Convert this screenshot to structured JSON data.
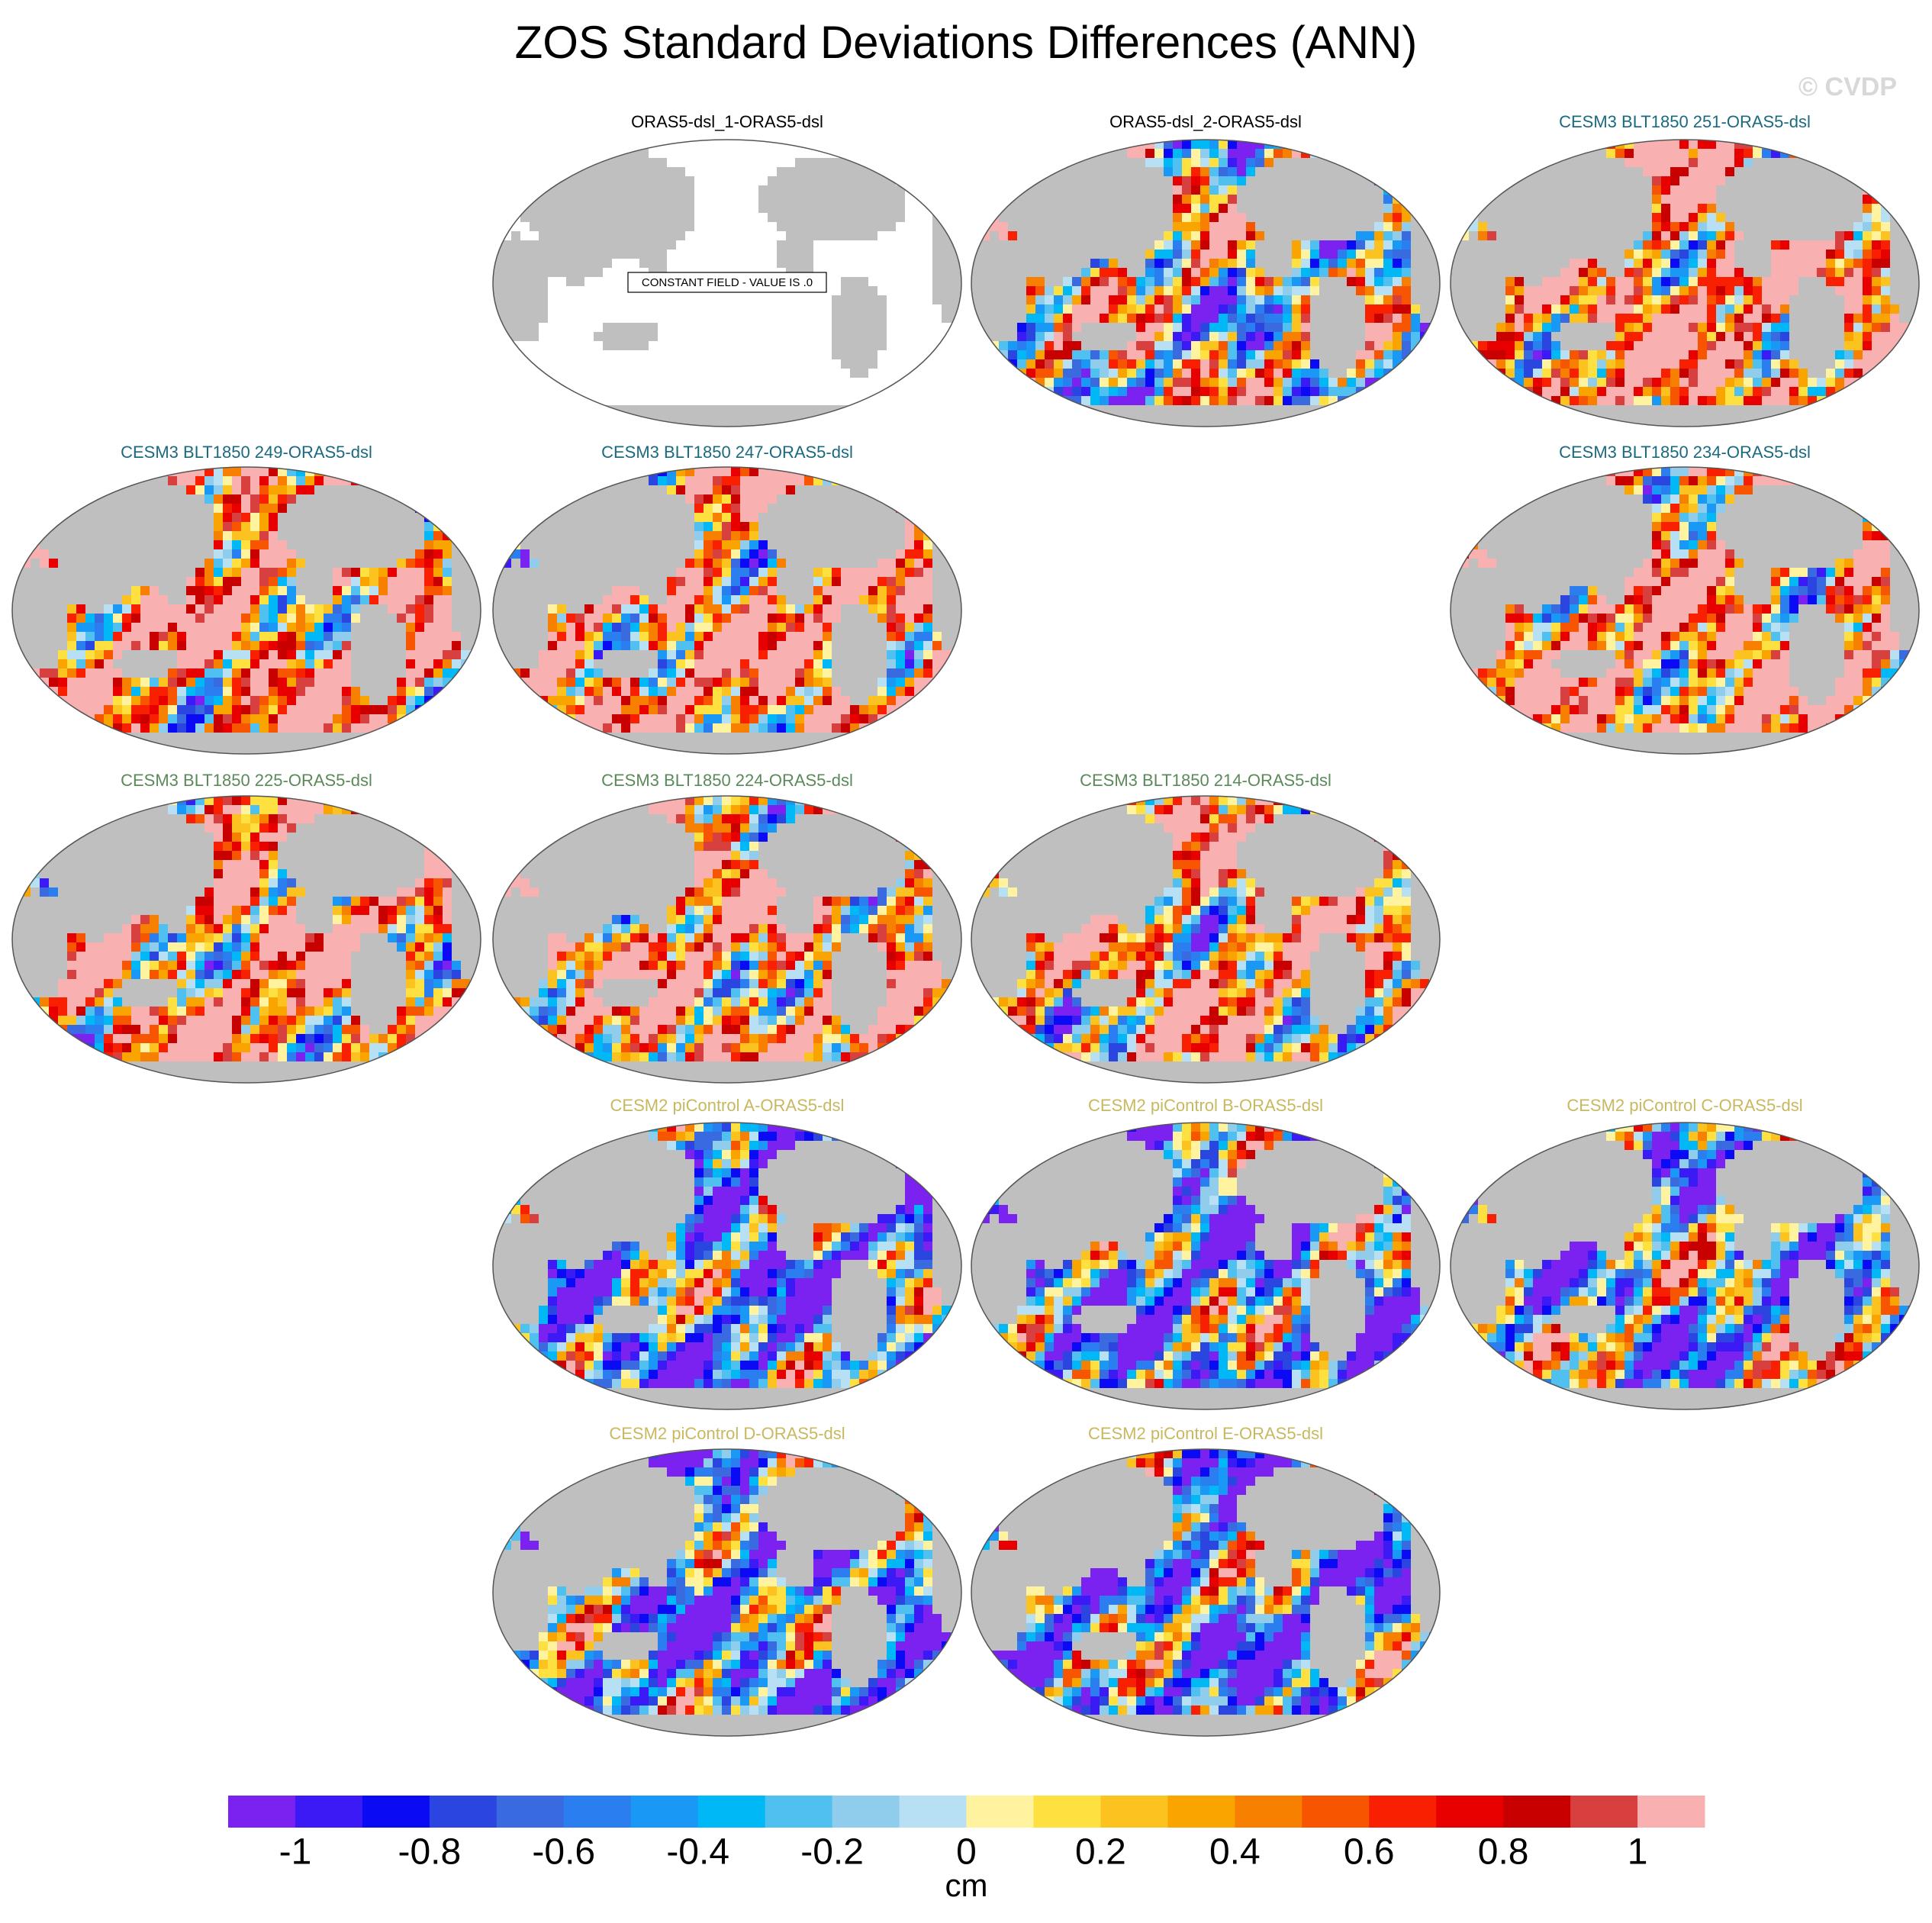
{
  "title": "ZOS Standard Deviations Differences (ANN)",
  "watermark": "© CVDP",
  "panels": [
    {
      "title": "ORAS5-dsl_1-ORAS5-dsl",
      "title_color": "#000000",
      "annotation": "CONSTANT FIELD - VALUE IS .0"
    },
    {
      "title": "ORAS5-dsl_2-ORAS5-dsl",
      "title_color": "#000000"
    },
    {
      "title": "CESM3 BLT1850 251-ORAS5-dsl",
      "title_color": "#1a6a80"
    },
    {
      "title": "CESM3 BLT1850 249-ORAS5-dsl",
      "title_color": "#1a6a80"
    },
    {
      "title": "CESM3 BLT1850 247-ORAS5-dsl",
      "title_color": "#1a6a80"
    },
    {
      "title": "CESM3 BLT1850 234-ORAS5-dsl",
      "title_color": "#1a6a80"
    },
    {
      "title": "CESM3 BLT1850 225-ORAS5-dsl",
      "title_color": "#5a8a5a"
    },
    {
      "title": "CESM3 BLT1850 224-ORAS5-dsl",
      "title_color": "#5a8a5a"
    },
    {
      "title": "CESM3 BLT1850 214-ORAS5-dsl",
      "title_color": "#5a8a5a"
    },
    {
      "title": "CESM2 piControl A-ORAS5-dsl",
      "title_color": "#c8b860"
    },
    {
      "title": "CESM2 piControl B-ORAS5-dsl",
      "title_color": "#c8b860"
    },
    {
      "title": "CESM2 piControl C-ORAS5-dsl",
      "title_color": "#c8b860"
    },
    {
      "title": "CESM2 piControl D-ORAS5-dsl",
      "title_color": "#c8b860"
    },
    {
      "title": "CESM2 piControl E-ORAS5-dsl",
      "title_color": "#c8b860"
    }
  ],
  "colorbar": {
    "label": "cm",
    "levels": [
      -1,
      -0.9,
      -0.8,
      -0.7,
      -0.6,
      -0.5,
      -0.4,
      -0.3,
      -0.2,
      -0.1,
      0,
      0.1,
      0.2,
      0.3,
      0.4,
      0.5,
      0.6,
      0.7,
      0.8,
      0.9,
      1
    ],
    "colors": [
      "#7b22f0",
      "#3b1af5",
      "#0a0af5",
      "#2b45e0",
      "#3a6ae0",
      "#2a7ef0",
      "#1a98f5",
      "#00b8f5",
      "#50c0f0",
      "#90ccec",
      "#b8e0f4",
      "#fff3a0",
      "#fee040",
      "#fcc220",
      "#faa400",
      "#f88000",
      "#f85500",
      "#f82000",
      "#e80000",
      "#c80000",
      "#d84040",
      "#f8b0b0"
    ],
    "ticks": [
      -1,
      -0.8,
      -0.6,
      -0.4,
      -0.2,
      0,
      0.2,
      0.4,
      0.6,
      0.8,
      1
    ]
  }
}
